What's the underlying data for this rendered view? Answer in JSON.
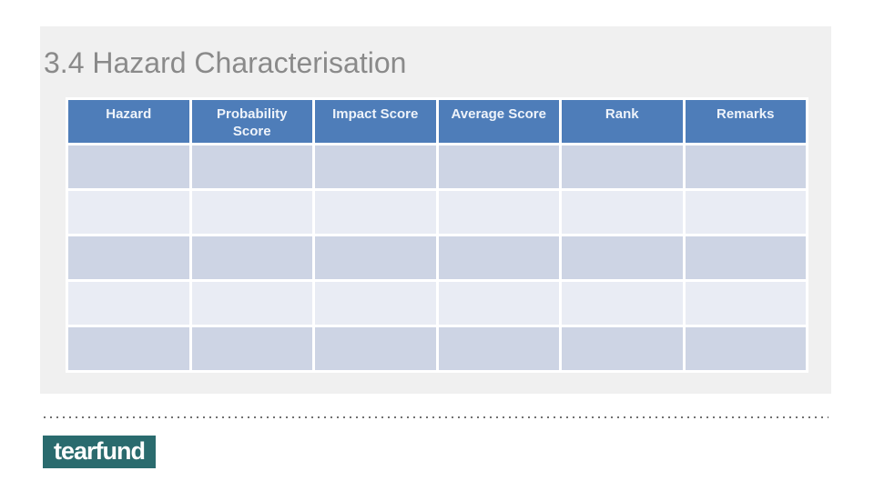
{
  "slide": {
    "title": "3.4 Hazard Characterisation"
  },
  "table": {
    "columns": [
      "Hazard",
      "Probability Score",
      "Impact Score",
      "Average Score",
      "Rank",
      "Remarks"
    ],
    "rows": [
      [
        "",
        "",
        "",
        "",
        "",
        ""
      ],
      [
        "",
        "",
        "",
        "",
        "",
        ""
      ],
      [
        "",
        "",
        "",
        "",
        "",
        ""
      ],
      [
        "",
        "",
        "",
        "",
        "",
        ""
      ],
      [
        "",
        "",
        "",
        "",
        "",
        ""
      ]
    ]
  },
  "logo": {
    "text": "tearfund"
  },
  "colors": {
    "header_blue": "#4e7db9",
    "row_band_dark": "#cdd4e4",
    "row_band_light": "#e9ecf4",
    "title_gray": "#8a8a8a",
    "logo_teal": "#2a6b6e",
    "slide_background": "#f0f0f0",
    "dotted_line_gray": "#707070"
  }
}
